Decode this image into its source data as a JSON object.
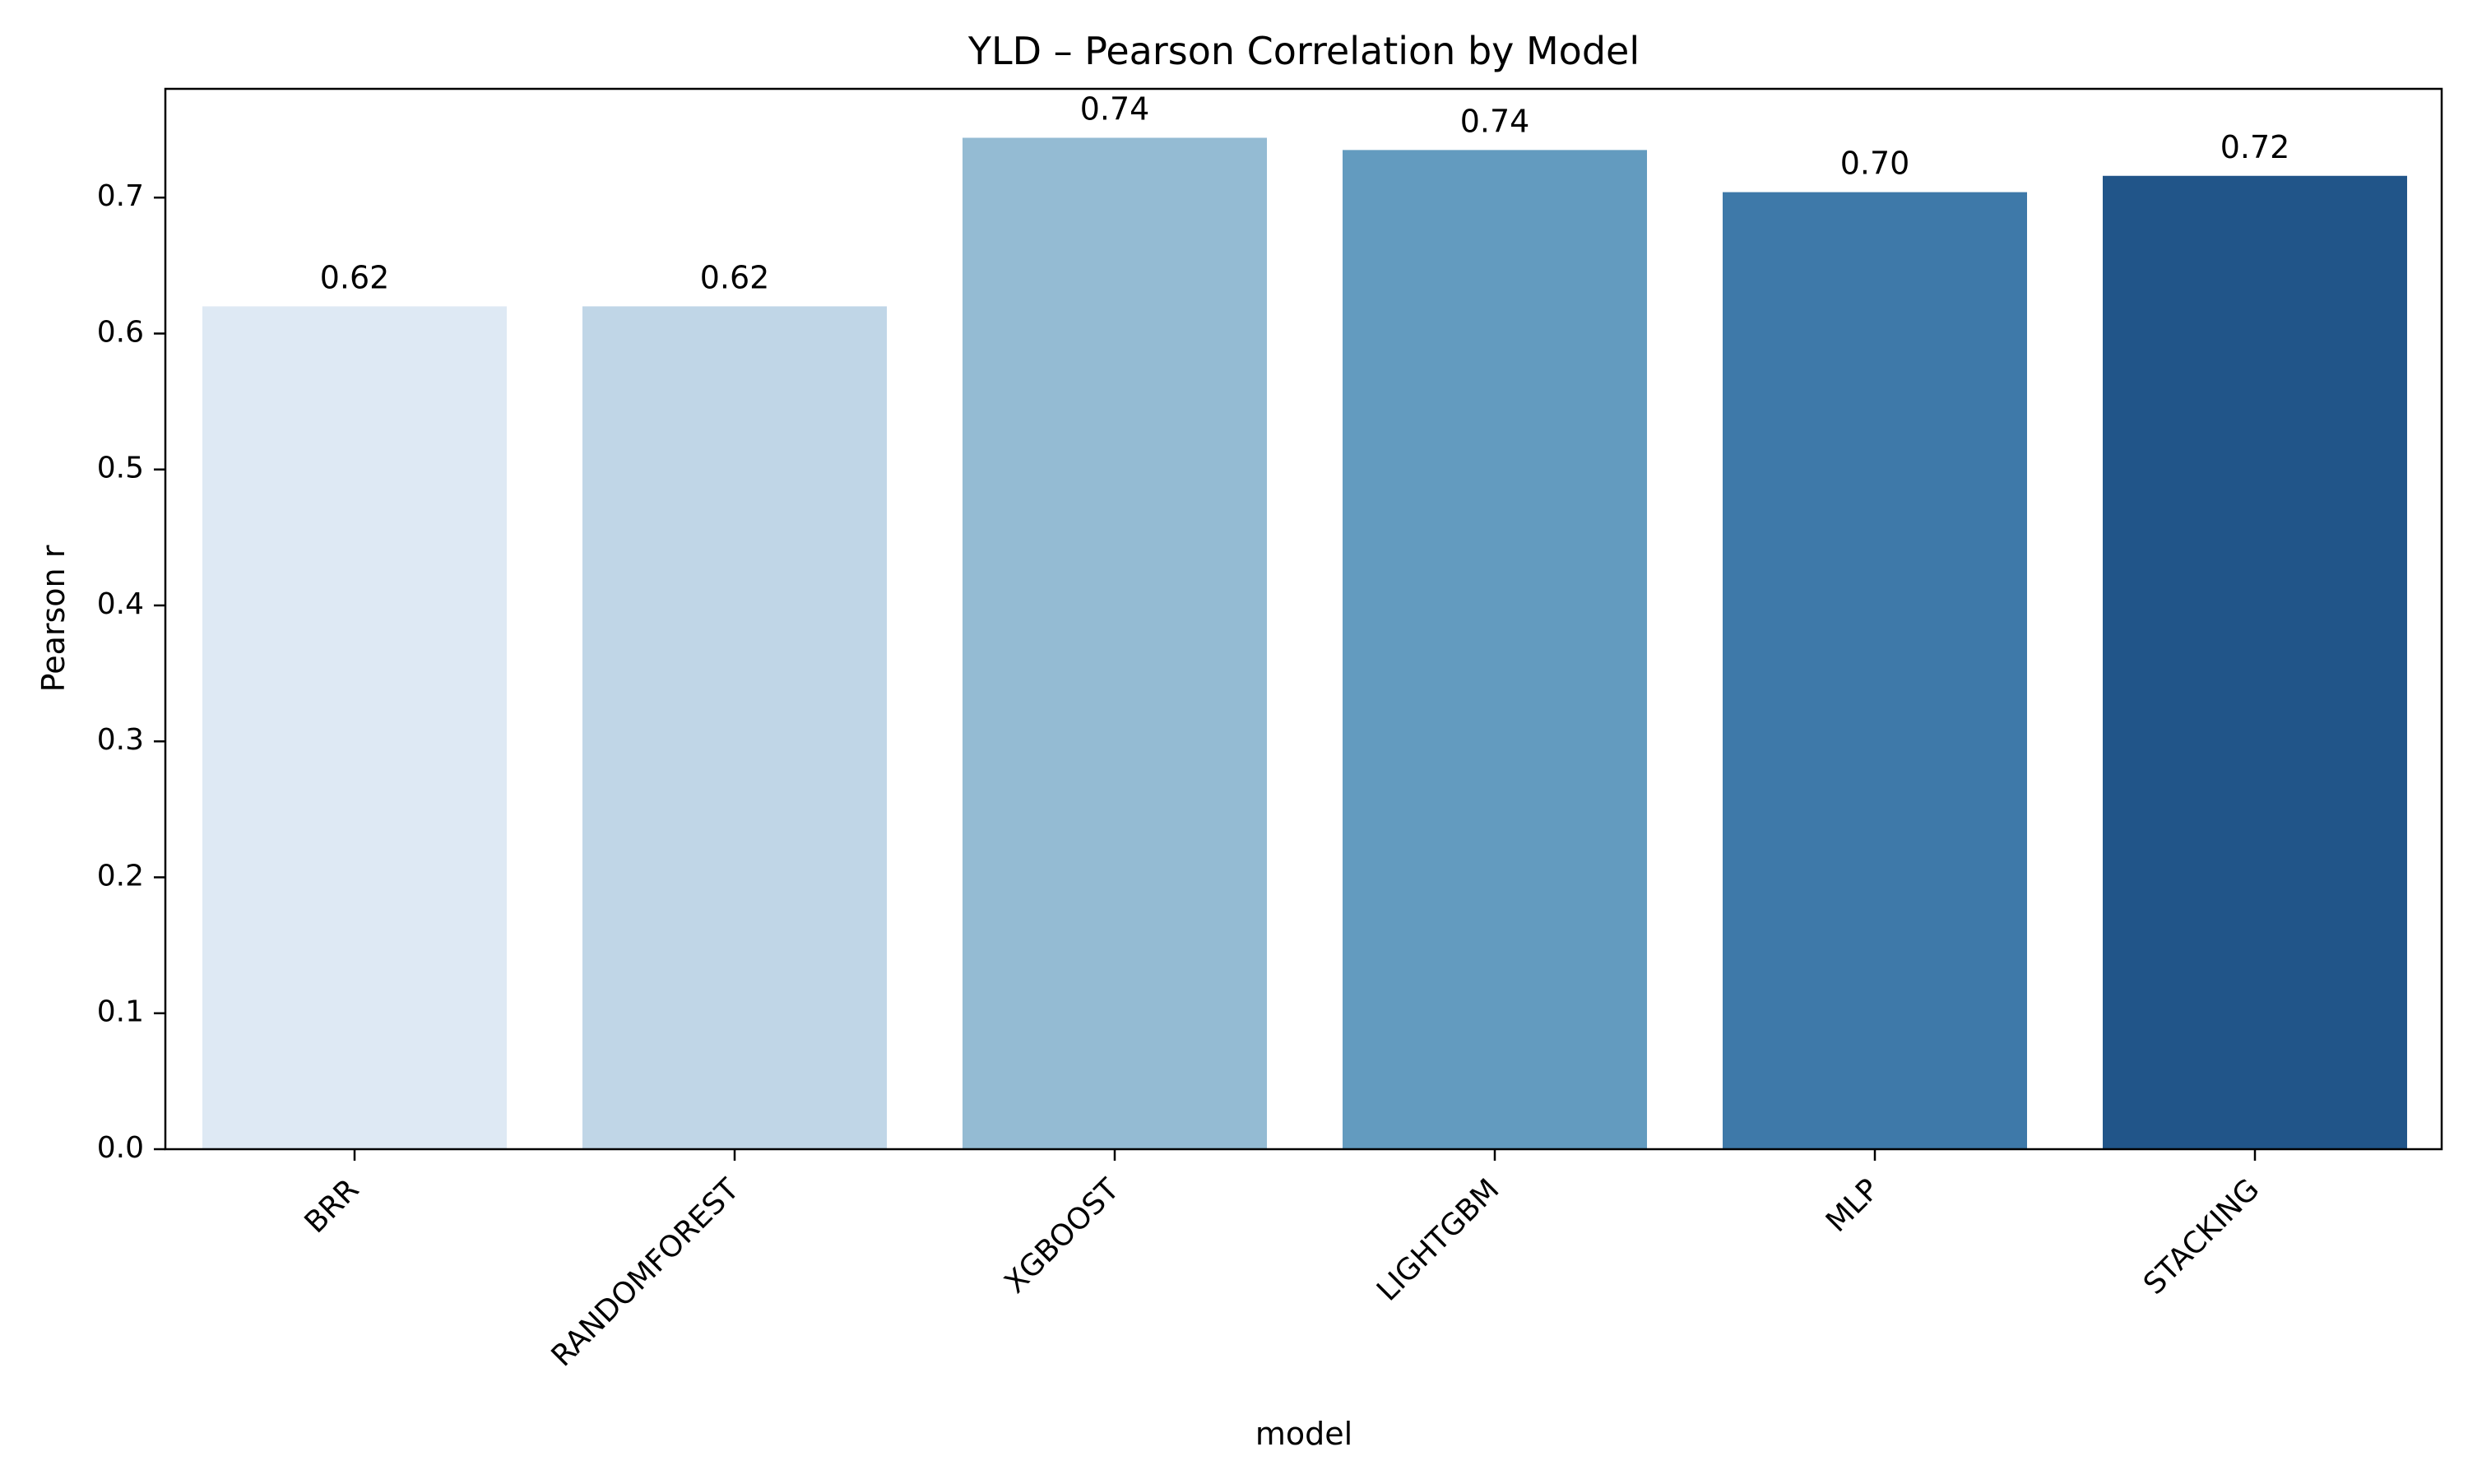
{
  "chart_data": {
    "type": "bar",
    "title": "YLD – Pearson Correlation by Model",
    "xlabel": "model",
    "ylabel": "Pearson r",
    "categories": [
      "BRR",
      "RANDOMFOREST",
      "XGBOOST",
      "LIGHTGBM",
      "MLP",
      "STACKING"
    ],
    "values": [
      0.62,
      0.62,
      0.744,
      0.735,
      0.704,
      0.716
    ],
    "value_labels": [
      "0.62",
      "0.62",
      "0.74",
      "0.74",
      "0.70",
      "0.72"
    ],
    "colors": [
      "#dee9f4",
      "#c0d6e7",
      "#94bbd3",
      "#639bbf",
      "#3e79a9",
      "#215589"
    ],
    "ylim": [
      0,
      0.78
    ],
    "yticks": [
      0.0,
      0.1,
      0.2,
      0.3,
      0.4,
      0.5,
      0.6,
      0.7
    ],
    "ytick_labels": [
      "0.0",
      "0.1",
      "0.2",
      "0.3",
      "0.4",
      "0.5",
      "0.6",
      "0.7"
    ],
    "grid": false,
    "legend": "none"
  }
}
